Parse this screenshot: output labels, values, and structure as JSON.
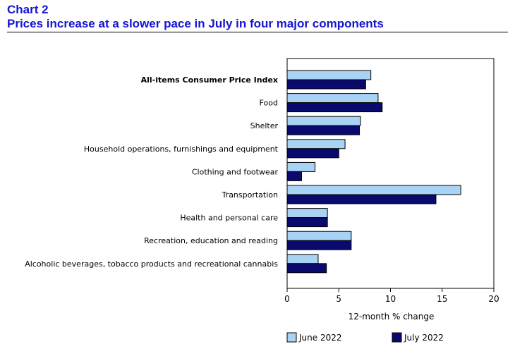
{
  "header": {
    "chart_number": "Chart 2",
    "title": "Prices increase at a slower pace in July in four major components"
  },
  "colors": {
    "heading": "#1414d2",
    "june": "#a9d3f5",
    "july": "#0a0a6e"
  },
  "chart_data": {
    "type": "bar",
    "orientation": "horizontal",
    "categories": [
      "All-items Consumer Price Index",
      "Food",
      "Shelter",
      "Household operations, furnishings and equipment",
      "Clothing and footwear",
      "Transportation",
      "Health and personal care",
      "Recreation, education and reading",
      "Alcoholic beverages, tobacco products and recreational cannabis"
    ],
    "bold_categories": [
      "All-items Consumer Price Index"
    ],
    "series": [
      {
        "name": "June 2022",
        "values": [
          8.1,
          8.8,
          7.1,
          5.6,
          2.7,
          16.8,
          3.9,
          6.2,
          3.0
        ]
      },
      {
        "name": "July 2022",
        "values": [
          7.6,
          9.2,
          7.0,
          5.0,
          1.4,
          14.4,
          3.9,
          6.2,
          3.8
        ]
      }
    ],
    "xlabel": "12-month % change",
    "xlim": [
      0,
      20
    ],
    "xticks": [
      "0",
      "5",
      "10",
      "15",
      "20"
    ],
    "legend_placement": "bottom",
    "grid": false
  }
}
